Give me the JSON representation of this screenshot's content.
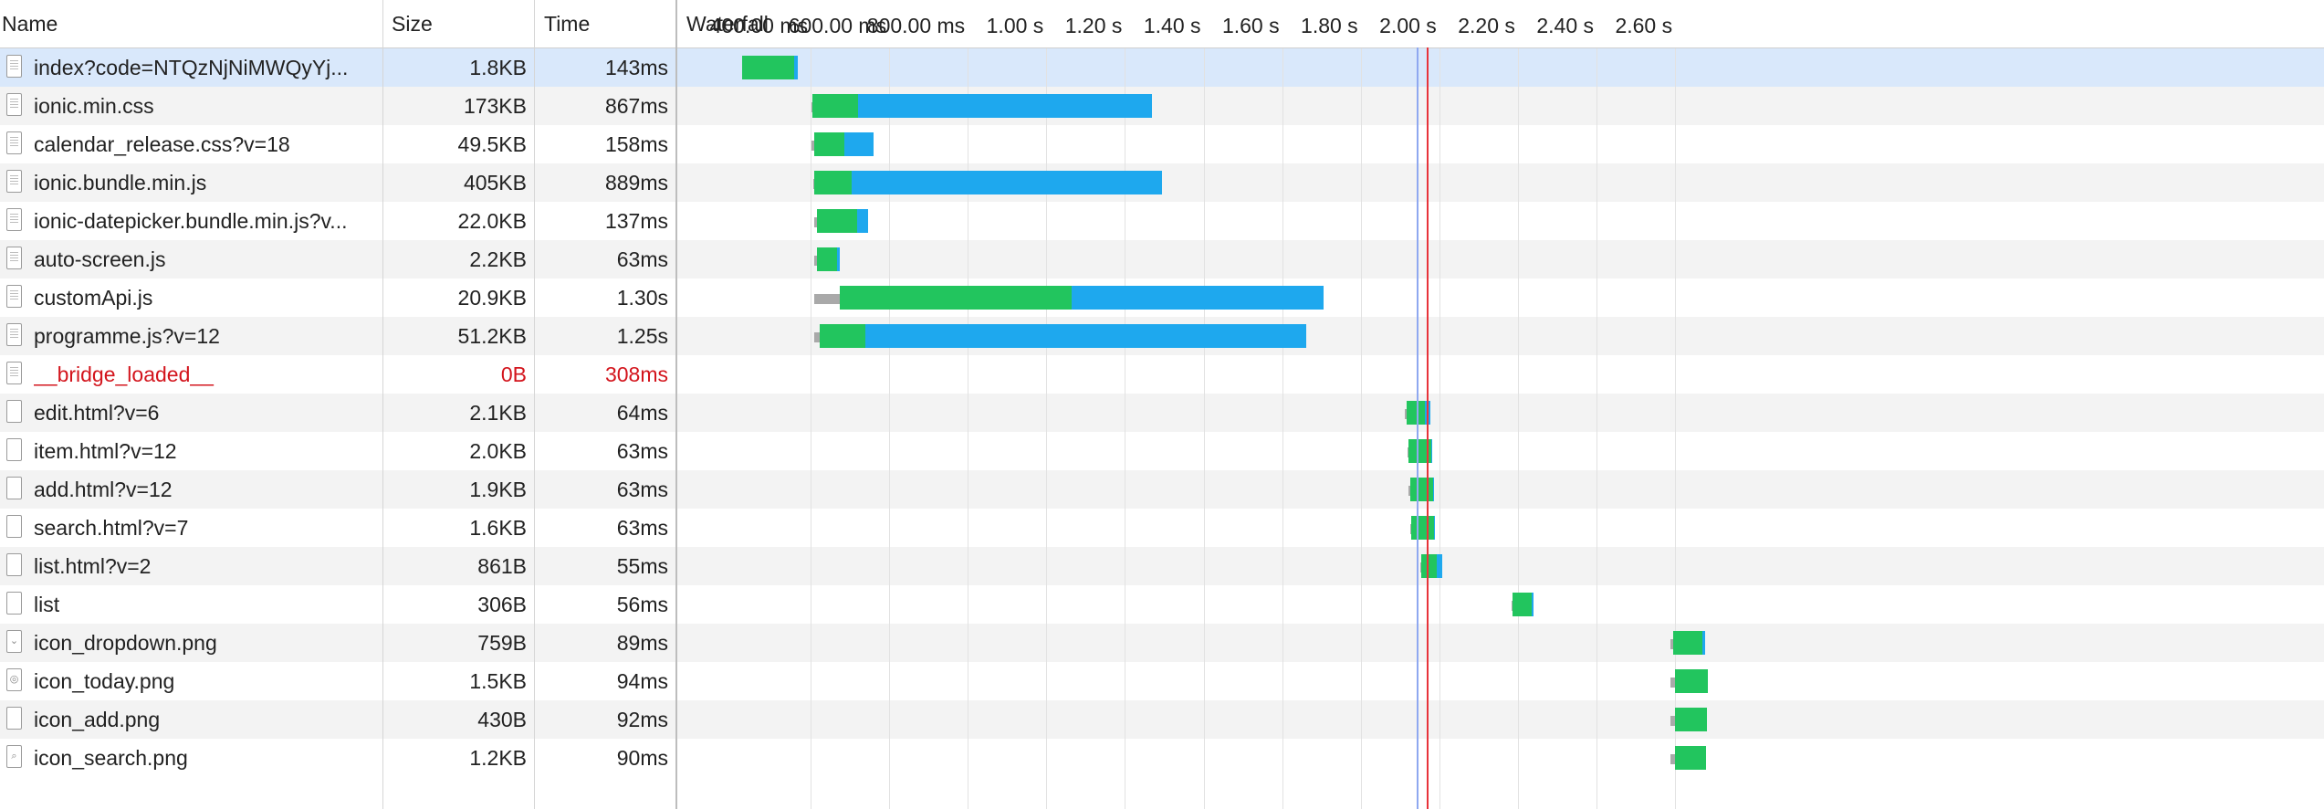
{
  "columns": {
    "name": "Name",
    "size": "Size",
    "time": "Time",
    "waterfall": "Waterfall"
  },
  "colors": {
    "waiting": "#a9a9a9",
    "receiving": "#22c55e",
    "downloading": "#1ea8ee",
    "dom_content_loaded": "#8fa8f0",
    "load": "#e8333a",
    "error_text": "#d3141c",
    "selected_row": "#d9e8fb"
  },
  "timeline": {
    "ticks": [
      "400.00 ms",
      "600.00 ms",
      "800.00 ms",
      "1.00 s",
      "1.20 s",
      "1.40 s",
      "1.60 s",
      "1.80 s",
      "2.00 s",
      "2.20 s",
      "2.40 s",
      "2.60 s"
    ],
    "tick_values_ms": [
      400,
      600,
      800,
      1000,
      1200,
      1400,
      1600,
      1800,
      2000,
      2200,
      2400,
      2600
    ],
    "dom_content_loaded_ms": 1941,
    "load_ms": 1965
  },
  "requests": [
    {
      "name": "index?code=NTQzNjNiMWQyYj...",
      "size": "1.8KB",
      "time": "143ms",
      "icon": "document-icon",
      "selected": true,
      "start_ms": 223,
      "wait_ms": 0,
      "receive_ms": 132,
      "download_ms": 11
    },
    {
      "name": "ionic.min.css",
      "size": "173KB",
      "time": "867ms",
      "icon": "document-icon",
      "start_ms": 400,
      "wait_ms": 3,
      "receive_ms": 115,
      "download_ms": 749
    },
    {
      "name": "calendar_release.css?v=18",
      "size": "49.5KB",
      "time": "158ms",
      "icon": "document-icon",
      "start_ms": 400,
      "wait_ms": 7,
      "receive_ms": 77,
      "download_ms": 74
    },
    {
      "name": "ionic.bundle.min.js",
      "size": "405KB",
      "time": "889ms",
      "icon": "document-icon",
      "start_ms": 404,
      "wait_ms": 3,
      "receive_ms": 96,
      "download_ms": 790
    },
    {
      "name": "ionic-datepicker.bundle.min.js?v...",
      "size": "22.0KB",
      "time": "137ms",
      "icon": "document-icon",
      "start_ms": 408,
      "wait_ms": 7,
      "receive_ms": 102,
      "download_ms": 28
    },
    {
      "name": "auto-screen.js",
      "size": "2.2KB",
      "time": "63ms",
      "icon": "document-icon",
      "start_ms": 408,
      "wait_ms": 7,
      "receive_ms": 51,
      "download_ms": 5
    },
    {
      "name": "customApi.js",
      "size": "20.9KB",
      "time": "1.30s",
      "icon": "document-icon",
      "start_ms": 408,
      "wait_ms": 65,
      "receive_ms": 590,
      "download_ms": 640
    },
    {
      "name": "programme.js?v=12",
      "size": "51.2KB",
      "time": "1.25s",
      "icon": "document-icon",
      "start_ms": 408,
      "wait_ms": 12,
      "receive_ms": 116,
      "download_ms": 1122
    },
    {
      "name": "__bridge_loaded__",
      "size": "0B",
      "time": "308ms",
      "icon": "document-icon",
      "error": true
    },
    {
      "name": "edit.html?v=6",
      "size": "2.1KB",
      "time": "64ms",
      "icon": "blank-file-icon",
      "start_ms": 1911,
      "wait_ms": 3,
      "receive_ms": 48,
      "download_ms": 13
    },
    {
      "name": "item.html?v=12",
      "size": "2.0KB",
      "time": "63ms",
      "icon": "blank-file-icon",
      "start_ms": 1916,
      "wait_ms": 3,
      "receive_ms": 58,
      "download_ms": 2
    },
    {
      "name": "add.html?v=12",
      "size": "1.9KB",
      "time": "63ms",
      "icon": "blank-file-icon",
      "start_ms": 1920,
      "wait_ms": 3,
      "receive_ms": 58,
      "download_ms": 2
    },
    {
      "name": "search.html?v=7",
      "size": "1.6KB",
      "time": "63ms",
      "icon": "blank-file-icon",
      "start_ms": 1924,
      "wait_ms": 3,
      "receive_ms": 58,
      "download_ms": 2
    },
    {
      "name": "list.html?v=2",
      "size": "861B",
      "time": "55ms",
      "icon": "blank-file-icon",
      "start_ms": 1949,
      "wait_ms": 3,
      "receive_ms": 40,
      "download_ms": 12
    },
    {
      "name": "list",
      "size": "306B",
      "time": "56ms",
      "icon": "blank-file-icon",
      "start_ms": 2182,
      "wait_ms": 3,
      "receive_ms": 47,
      "download_ms": 6
    },
    {
      "name": "icon_dropdown.png",
      "size": "759B",
      "time": "89ms",
      "icon": "image-dropdown-icon",
      "start_ms": 2586,
      "wait_ms": 7,
      "receive_ms": 74,
      "download_ms": 8
    },
    {
      "name": "icon_today.png",
      "size": "1.5KB",
      "time": "94ms",
      "icon": "image-today-icon",
      "start_ms": 2586,
      "wait_ms": 12,
      "receive_ms": 82,
      "download_ms": 0
    },
    {
      "name": "icon_add.png",
      "size": "430B",
      "time": "92ms",
      "icon": "image-add-icon",
      "start_ms": 2586,
      "wait_ms": 12,
      "receive_ms": 80,
      "download_ms": 0
    },
    {
      "name": "icon_search.png",
      "size": "1.2KB",
      "time": "90ms",
      "icon": "image-search-icon",
      "start_ms": 2586,
      "wait_ms": 12,
      "receive_ms": 78,
      "download_ms": 0
    }
  ]
}
